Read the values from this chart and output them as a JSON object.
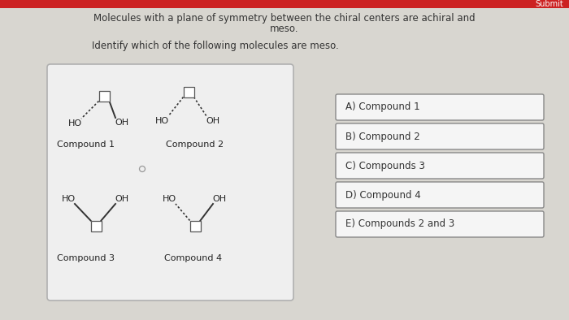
{
  "title_line1": "Molecules with a plane of symmetry between the chiral centers are achiral and",
  "title_line2": "meso.",
  "subtitle": "Identify which of the following molecules are meso.",
  "top_bar_color": "#cc2222",
  "submit_text": "Submit",
  "bg_color": "#d8d6d0",
  "panel_bg": "#efefef",
  "panel_border": "#b0b0b0",
  "answer_box_bg": "#f5f5f5",
  "answer_box_border": "#888888",
  "answers": [
    "A) Compound 1",
    "B) Compound 2",
    "C) Compounds 3",
    "D) Compound 4",
    "E) Compounds 2 and 3"
  ],
  "text_color": "#333333",
  "title_fontsize": 8.5,
  "subtitle_fontsize": 8.5,
  "answer_fontsize": 8.5,
  "compound_fontsize": 8,
  "label_fontsize": 8
}
